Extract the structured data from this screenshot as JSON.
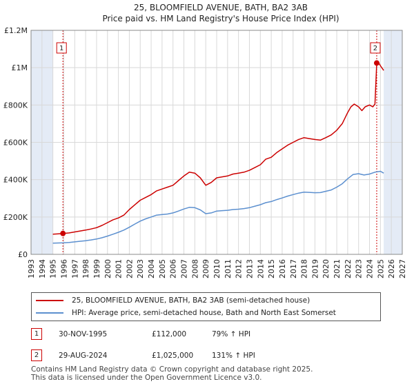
{
  "colors": {
    "price_line": "#cc0000",
    "hpi_line": "#5b8fcf",
    "grid": "#d8d8d8",
    "shade": "#e4ebf6",
    "marker_line": "#cc0000"
  },
  "chart_data": {
    "type": "line",
    "title": "25, BLOOMFIELD AVENUE, BATH, BA2 3AB",
    "subtitle": "Price paid vs. HM Land Registry's House Price Index (HPI)",
    "xlim": [
      1993,
      2027
    ],
    "ylim": [
      0,
      1200000
    ],
    "x_ticks": [
      1993,
      1994,
      1995,
      1996,
      1997,
      1998,
      1999,
      2000,
      2001,
      2002,
      2003,
      2004,
      2005,
      2006,
      2007,
      2008,
      2009,
      2010,
      2011,
      2012,
      2013,
      2014,
      2015,
      2016,
      2017,
      2018,
      2019,
      2020,
      2021,
      2022,
      2023,
      2024,
      2025,
      2026,
      2027
    ],
    "y_ticks": [
      {
        "value": 0,
        "label": "£0"
      },
      {
        "value": 200000,
        "label": "£200K"
      },
      {
        "value": 400000,
        "label": "£400K"
      },
      {
        "value": 600000,
        "label": "£600K"
      },
      {
        "value": 800000,
        "label": "£800K"
      },
      {
        "value": 1000000,
        "label": "£1M"
      },
      {
        "value": 1200000,
        "label": "£1.2M"
      }
    ],
    "shaded_ranges": [
      [
        1993,
        1995.0
      ],
      [
        2025.3,
        2027
      ]
    ],
    "series": [
      {
        "name": "25, BLOOMFIELD AVENUE, BATH, BA2 3AB (semi-detached house)",
        "color": "#cc0000",
        "x": [
          1995.0,
          1995.5,
          1995.92,
          1996.5,
          1997.0,
          1997.5,
          1998.0,
          1998.5,
          1999.0,
          1999.5,
          2000.0,
          2000.5,
          2001.0,
          2001.5,
          2002.0,
          2002.5,
          2003.0,
          2003.5,
          2004.0,
          2004.5,
          2005.0,
          2005.5,
          2006.0,
          2006.5,
          2007.0,
          2007.5,
          2008.0,
          2008.5,
          2009.0,
          2009.5,
          2010.0,
          2010.5,
          2011.0,
          2011.5,
          2012.0,
          2012.5,
          2013.0,
          2013.5,
          2014.0,
          2014.5,
          2015.0,
          2015.5,
          2016.0,
          2016.5,
          2017.0,
          2017.5,
          2018.0,
          2018.5,
          2019.0,
          2019.5,
          2020.0,
          2020.5,
          2021.0,
          2021.5,
          2022.0,
          2022.3,
          2022.6,
          2023.0,
          2023.3,
          2023.6,
          2024.0,
          2024.3,
          2024.5,
          2024.66,
          2024.8,
          2025.0,
          2025.3
        ],
        "y": [
          108000,
          110000,
          112000,
          115000,
          120000,
          125000,
          130000,
          136000,
          143000,
          155000,
          170000,
          185000,
          195000,
          210000,
          240000,
          265000,
          290000,
          305000,
          320000,
          340000,
          350000,
          360000,
          370000,
          395000,
          420000,
          440000,
          435000,
          410000,
          370000,
          385000,
          410000,
          415000,
          420000,
          430000,
          435000,
          440000,
          450000,
          465000,
          480000,
          510000,
          520000,
          545000,
          565000,
          585000,
          600000,
          615000,
          625000,
          620000,
          615000,
          612000,
          625000,
          640000,
          665000,
          700000,
          760000,
          790000,
          805000,
          790000,
          770000,
          790000,
          800000,
          790000,
          805000,
          1025000,
          1030000,
          1010000,
          985000
        ]
      },
      {
        "name": "HPI: Average price, semi-detached house, Bath and North East Somerset",
        "color": "#5b8fcf",
        "x": [
          1995.0,
          1995.5,
          1996.0,
          1996.5,
          1997.0,
          1997.5,
          1998.0,
          1998.5,
          1999.0,
          1999.5,
          2000.0,
          2000.5,
          2001.0,
          2001.5,
          2002.0,
          2002.5,
          2003.0,
          2003.5,
          2004.0,
          2004.5,
          2005.0,
          2005.5,
          2006.0,
          2006.5,
          2007.0,
          2007.5,
          2008.0,
          2008.5,
          2009.0,
          2009.5,
          2010.0,
          2010.5,
          2011.0,
          2011.5,
          2012.0,
          2012.5,
          2013.0,
          2013.5,
          2014.0,
          2014.5,
          2015.0,
          2015.5,
          2016.0,
          2016.5,
          2017.0,
          2017.5,
          2018.0,
          2018.5,
          2019.0,
          2019.5,
          2020.0,
          2020.5,
          2021.0,
          2021.5,
          2022.0,
          2022.5,
          2023.0,
          2023.5,
          2024.0,
          2024.5,
          2025.0,
          2025.3
        ],
        "y": [
          60000,
          61000,
          62000,
          64000,
          67000,
          70000,
          73000,
          77000,
          82000,
          89000,
          98000,
          108000,
          118000,
          130000,
          145000,
          162000,
          178000,
          190000,
          200000,
          210000,
          213000,
          216000,
          222000,
          232000,
          243000,
          252000,
          250000,
          238000,
          218000,
          222000,
          232000,
          234000,
          236000,
          240000,
          242000,
          245000,
          250000,
          258000,
          266000,
          277000,
          283000,
          293000,
          302000,
          312000,
          320000,
          328000,
          333000,
          332000,
          330000,
          331000,
          338000,
          345000,
          360000,
          378000,
          405000,
          428000,
          432000,
          425000,
          430000,
          440000,
          445000,
          435000
        ]
      }
    ],
    "sale_markers": [
      {
        "label": "1",
        "x": 1995.92,
        "y": 112000
      },
      {
        "label": "2",
        "x": 2024.66,
        "y": 1025000
      }
    ]
  },
  "legend": {
    "price_label": "25, BLOOMFIELD AVENUE, BATH, BA2 3AB (semi-detached house)",
    "hpi_label": "HPI: Average price, semi-detached house, Bath and North East Somerset"
  },
  "transactions": [
    {
      "num": "1",
      "date": "30-NOV-1995",
      "price": "£112,000",
      "hpi_change": "79% ↑ HPI"
    },
    {
      "num": "2",
      "date": "29-AUG-2024",
      "price": "£1,025,000",
      "hpi_change": "131% ↑ HPI"
    }
  ],
  "footer": {
    "line1": "Contains HM Land Registry data © Crown copyright and database right 2025.",
    "line2": "This data is licensed under the Open Government Licence v3.0."
  }
}
